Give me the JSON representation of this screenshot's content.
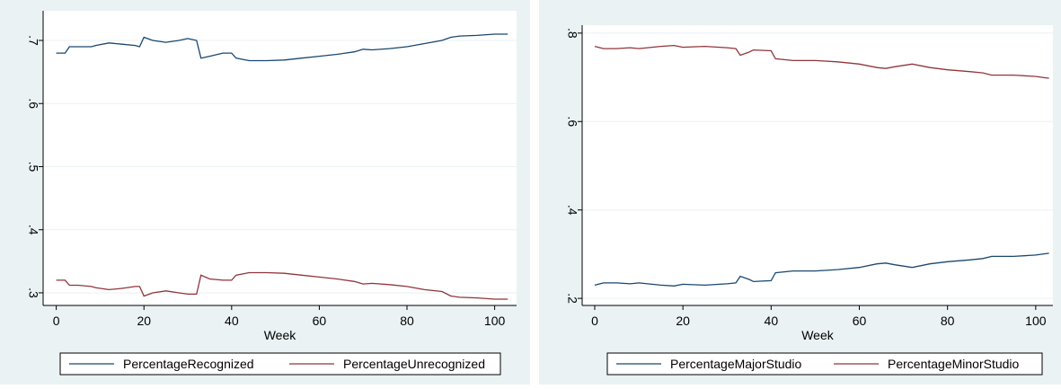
{
  "chart_data": [
    {
      "type": "line",
      "x_label": "Week",
      "x": [
        0,
        2,
        3,
        5,
        8,
        9,
        12,
        15,
        18,
        19,
        20,
        22,
        25,
        28,
        30,
        32,
        33,
        35,
        38,
        40,
        41,
        44,
        48,
        52,
        56,
        60,
        64,
        68,
        70,
        72,
        76,
        80,
        84,
        88,
        90,
        92,
        96,
        100,
        103
      ],
      "series": [
        {
          "name": "PercentageRecognized",
          "color": "#1a476f",
          "values": [
            0.68,
            0.68,
            0.69,
            0.69,
            0.69,
            0.692,
            0.696,
            0.694,
            0.692,
            0.69,
            0.705,
            0.7,
            0.697,
            0.7,
            0.703,
            0.7,
            0.672,
            0.675,
            0.68,
            0.68,
            0.672,
            0.668,
            0.668,
            0.669,
            0.672,
            0.675,
            0.678,
            0.682,
            0.686,
            0.685,
            0.687,
            0.69,
            0.695,
            0.7,
            0.705,
            0.707,
            0.708,
            0.71,
            0.71
          ]
        },
        {
          "name": "PercentageUnrecognized",
          "color": "#90353b",
          "values": [
            0.32,
            0.32,
            0.312,
            0.312,
            0.31,
            0.308,
            0.305,
            0.307,
            0.31,
            0.31,
            0.295,
            0.3,
            0.303,
            0.3,
            0.298,
            0.298,
            0.328,
            0.322,
            0.32,
            0.32,
            0.328,
            0.332,
            0.332,
            0.331,
            0.328,
            0.325,
            0.322,
            0.318,
            0.314,
            0.315,
            0.313,
            0.31,
            0.305,
            0.302,
            0.295,
            0.293,
            0.292,
            0.29,
            0.29
          ]
        }
      ],
      "xlim": [
        -3,
        105
      ],
      "xticks": [
        0,
        20,
        40,
        60,
        80,
        100
      ],
      "ylim": [
        0.28,
        0.747
      ],
      "yticks": [
        {
          "value": 0.3,
          "label": ".3"
        },
        {
          "value": 0.4,
          "label": ".4"
        },
        {
          "value": 0.5,
          "label": ".5"
        },
        {
          "value": 0.6,
          "label": ".6"
        },
        {
          "value": 0.7,
          "label": ".7"
        }
      ],
      "grid": true
    },
    {
      "type": "line",
      "x_label": "Week",
      "x": [
        0,
        2,
        5,
        8,
        10,
        15,
        18,
        20,
        25,
        30,
        32,
        33,
        35,
        36,
        40,
        41,
        45,
        50,
        55,
        60,
        64,
        66,
        68,
        72,
        76,
        80,
        85,
        88,
        90,
        95,
        100,
        103
      ],
      "series": [
        {
          "name": "PercentageMajorStudio",
          "color": "#1a476f",
          "values": [
            0.23,
            0.235,
            0.235,
            0.233,
            0.235,
            0.23,
            0.228,
            0.232,
            0.23,
            0.233,
            0.235,
            0.25,
            0.243,
            0.238,
            0.24,
            0.258,
            0.262,
            0.262,
            0.265,
            0.27,
            0.278,
            0.28,
            0.276,
            0.27,
            0.278,
            0.283,
            0.287,
            0.29,
            0.295,
            0.295,
            0.298,
            0.302
          ]
        },
        {
          "name": "PercentageMinorStudio",
          "color": "#90353b",
          "values": [
            0.77,
            0.765,
            0.765,
            0.767,
            0.765,
            0.77,
            0.772,
            0.768,
            0.77,
            0.767,
            0.765,
            0.75,
            0.757,
            0.762,
            0.76,
            0.742,
            0.738,
            0.738,
            0.735,
            0.73,
            0.722,
            0.72,
            0.724,
            0.73,
            0.722,
            0.717,
            0.713,
            0.71,
            0.705,
            0.705,
            0.702,
            0.698
          ]
        }
      ],
      "xlim": [
        -2.85,
        103.9
      ],
      "xticks": [
        0,
        20,
        40,
        60,
        80,
        100
      ],
      "ylim": [
        0.184,
        0.818
      ],
      "yticks": [
        {
          "value": 0.2,
          "label": ".2"
        },
        {
          "value": 0.4,
          "label": ".4"
        },
        {
          "value": 0.6,
          "label": ".6"
        },
        {
          "value": 0.8,
          "label": ".8"
        }
      ],
      "grid": true
    }
  ]
}
